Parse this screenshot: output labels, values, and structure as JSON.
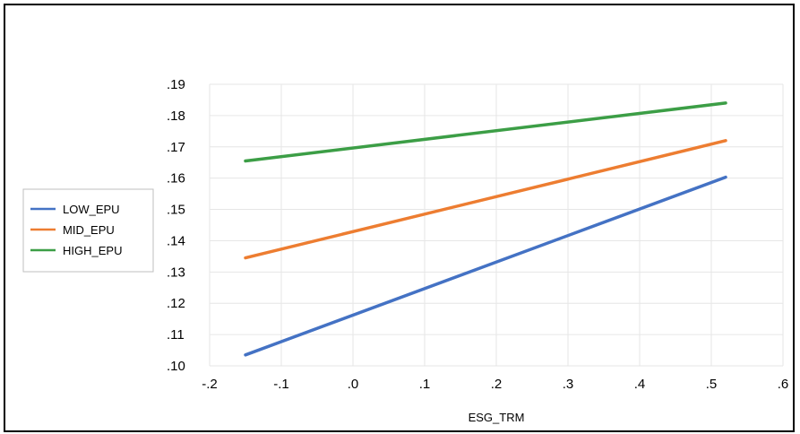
{
  "chart_data": {
    "type": "line",
    "title": "",
    "xlabel": "ESG_TRM",
    "ylabel": "",
    "xlim": [
      -0.2,
      0.6
    ],
    "ylim": [
      0.1,
      0.19
    ],
    "x_ticks": [
      -0.2,
      -0.1,
      0.0,
      0.1,
      0.2,
      0.3,
      0.4,
      0.5,
      0.6
    ],
    "x_tick_labels": [
      "-.2",
      "-.1",
      ".0",
      ".1",
      ".2",
      ".3",
      ".4",
      ".5",
      ".6"
    ],
    "y_ticks": [
      0.1,
      0.11,
      0.12,
      0.13,
      0.14,
      0.15,
      0.16,
      0.17,
      0.18,
      0.19
    ],
    "y_tick_labels": [
      ".10",
      ".11",
      ".12",
      ".13",
      ".14",
      ".15",
      ".16",
      ".17",
      ".18",
      ".19"
    ],
    "grid": true,
    "legend_position": "left",
    "series": [
      {
        "name": "LOW_EPU",
        "color": "#4472C4",
        "x": [
          -0.15,
          0.52
        ],
        "y": [
          0.1035,
          0.1603
        ]
      },
      {
        "name": "MID_EPU",
        "color": "#ED7D31",
        "x": [
          -0.15,
          0.52
        ],
        "y": [
          0.1345,
          0.172
        ]
      },
      {
        "name": "HIGH_EPU",
        "color": "#3C9E46",
        "x": [
          -0.15,
          0.52
        ],
        "y": [
          0.1655,
          0.184
        ]
      }
    ]
  }
}
